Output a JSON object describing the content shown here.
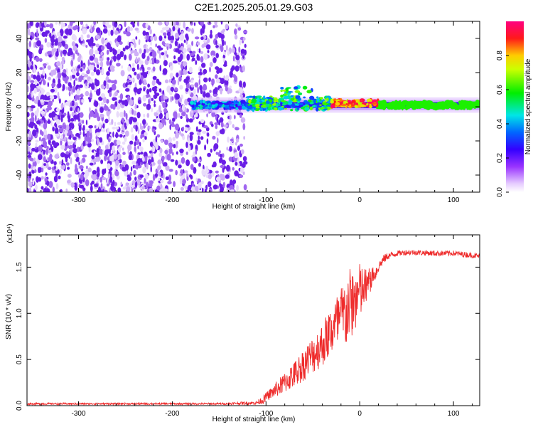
{
  "title": "C2E1.2025.205.01.29.G03",
  "colors": {
    "snr_line": "#ee2b2b",
    "axis": "#000000"
  },
  "chart_data": [
    {
      "type": "heatmap",
      "xlabel": "Height of straight line (km)",
      "ylabel": "Frequency (Hz)",
      "xlim": [
        -355,
        128
      ],
      "ylim": [
        -50,
        50
      ],
      "xticks": [
        -300,
        -200,
        -100,
        0,
        100
      ],
      "yticks": [
        -40,
        -20,
        0,
        20,
        40
      ],
      "colorbar": {
        "label": "Normalized spectral amplitude",
        "range": [
          0.0,
          1.0
        ],
        "ticks": [
          "0.0",
          "0.2",
          "0.4",
          "0.6",
          "0.8"
        ],
        "colormap": "rainbow (white-purple-blue-cyan-green-yellow-red-magenta)"
      },
      "regions": [
        {
          "name": "noise",
          "x_range": [
            -355,
            -122
          ],
          "freq_range": [
            -50,
            50
          ],
          "amplitude": "~0.0-0.1 scattered"
        },
        {
          "name": "signal_band_onset",
          "x_range": [
            -180,
            -120
          ],
          "center_hz": 1,
          "width_hz": 4,
          "amplitude": "0.2-0.5"
        },
        {
          "name": "signal_band_disturbed",
          "x_range": [
            -120,
            -30
          ],
          "center_hz": 2,
          "width_hz": 8,
          "amplitude": "0.3-0.7",
          "notable": "spread up to ~12 Hz near -70 km"
        },
        {
          "name": "signal_band_peak",
          "x_range": [
            -30,
            20
          ],
          "center_hz": 2,
          "width_hz": 4,
          "amplitude": "0.7-1.0"
        },
        {
          "name": "signal_band_steady",
          "x_range": [
            20,
            128
          ],
          "center_hz": 1,
          "width_hz": 4,
          "amplitude": "~0.6"
        }
      ]
    },
    {
      "type": "line",
      "xlabel": "Height of straight line (km)",
      "ylabel": "SNR (10 * v/v)",
      "y_multiplier": "(x10⁴)",
      "xlim": [
        -355,
        128
      ],
      "ylim": [
        0,
        1.85
      ],
      "xticks": [
        -300,
        -200,
        -100,
        0,
        100
      ],
      "yticks": [
        "0.0",
        "0.5",
        "1.0",
        "1.5"
      ],
      "series": [
        {
          "x": [
            -355,
            -300,
            -250,
            -200,
            -150,
            -110,
            -100,
            -90,
            -80,
            -70,
            -60,
            -50,
            -40,
            -30,
            -20,
            -15,
            -10,
            -5,
            0,
            5,
            10,
            15,
            20,
            25,
            30,
            40,
            50,
            60,
            80,
            100,
            128
          ],
          "y": [
            0.02,
            0.02,
            0.02,
            0.02,
            0.02,
            0.03,
            0.08,
            0.15,
            0.22,
            0.3,
            0.4,
            0.5,
            0.6,
            0.75,
            0.85,
            0.9,
            1.0,
            1.05,
            1.15,
            1.2,
            1.3,
            1.4,
            1.5,
            1.58,
            1.62,
            1.65,
            1.66,
            1.66,
            1.65,
            1.65,
            1.62
          ],
          "noise_amplitude": [
            0.01,
            0.01,
            0.01,
            0.01,
            0.01,
            0.02,
            0.06,
            0.1,
            0.14,
            0.18,
            0.22,
            0.26,
            0.3,
            0.35,
            0.45,
            0.5,
            0.5,
            0.45,
            0.4,
            0.3,
            0.2,
            0.1,
            0.06,
            0.05,
            0.04,
            0.03,
            0.03,
            0.03,
            0.03,
            0.03,
            0.03
          ]
        }
      ]
    }
  ]
}
